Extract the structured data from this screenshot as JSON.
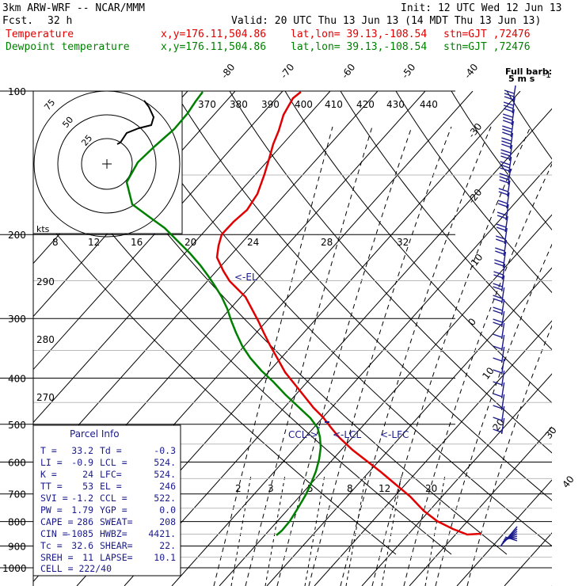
{
  "header": {
    "model": "3km ARW-WRF -- NCAR/MMM",
    "init": "Init: 12 UTC Wed 12 Jun 13",
    "fcst_label": "Fcst.",
    "fcst_value": "32 h",
    "valid": "Valid: 20 UTC Thu 13 Jun 13 (14 MDT Thu 13 Jun 13)",
    "temp_label": "Temperature",
    "dew_label": "Dewpoint temperature",
    "xy": "x,y=176.11,504.86",
    "latlon": "lat,lon= 39.13,-108.54",
    "stn": "stn=GJT ,72476",
    "temp_color": "#e00000",
    "dew_color": "#008000"
  },
  "chart_data": {
    "type": "line",
    "pressure_levels": [
      100,
      200,
      300,
      400,
      500,
      600,
      700,
      800,
      900,
      1000
    ],
    "pressure_tick_labels": [
      "100",
      "200",
      "300",
      "400",
      "500",
      "600",
      "700",
      "800",
      "900",
      "1000"
    ],
    "isotherm_labels": [
      "-80",
      "-70",
      "-60",
      "-50",
      "-40",
      "-30",
      "-20",
      "-10",
      "0",
      "10",
      "20",
      "30",
      "40"
    ],
    "theta_e_labels": [
      "370",
      "380",
      "390",
      "400",
      "410",
      "420",
      "430",
      "440"
    ],
    "mixing_ratio_labels": [
      "2",
      "3",
      "5",
      "8",
      "12",
      "20"
    ],
    "wind_speed_ring_labels": [
      "75",
      "50",
      "25"
    ],
    "kts_label": "kts",
    "kts_scale": [
      "8",
      "12",
      "16",
      "20",
      "24",
      "28",
      "32"
    ],
    "theta_labels": [
      "290",
      "280",
      "270"
    ],
    "barb_note_1": "Full barb:",
    "barb_note_2": "5 m s",
    "barb_note_exp": "-1",
    "annotations": {
      "el": "<-EL",
      "ccl": "CCL->",
      "lcl": "<-LCL",
      "lfc": "<-LFC"
    },
    "series": [
      {
        "name": "Temperature",
        "color": "#e00000"
      },
      {
        "name": "Dewpoint temperature",
        "color": "#008000"
      }
    ]
  },
  "parcel": {
    "title": "Parcel Info",
    "rows": [
      [
        "T  =",
        "33.2",
        "Td =",
        "-0.3"
      ],
      [
        "LI =",
        "-0.9",
        "LCL =",
        "524."
      ],
      [
        "K  =",
        "24",
        "LFC=",
        "524."
      ],
      [
        "TT =",
        "53",
        "EL =",
        "246"
      ],
      [
        "SVI =",
        "-1.2",
        "CCL =",
        "522."
      ],
      [
        "PW =",
        "1.79",
        "YGP =",
        "0.0"
      ],
      [
        "CAPE =",
        "286",
        "SWEAT=",
        "208"
      ],
      [
        "CIN =",
        "-1085",
        "HWBZ=",
        "4421."
      ],
      [
        "Tc =",
        "32.6",
        "SHEAR=",
        "22."
      ],
      [
        "SREH =",
        "11",
        "LAPSE=",
        "10.1"
      ]
    ],
    "cell": "CELL = 222/40"
  }
}
